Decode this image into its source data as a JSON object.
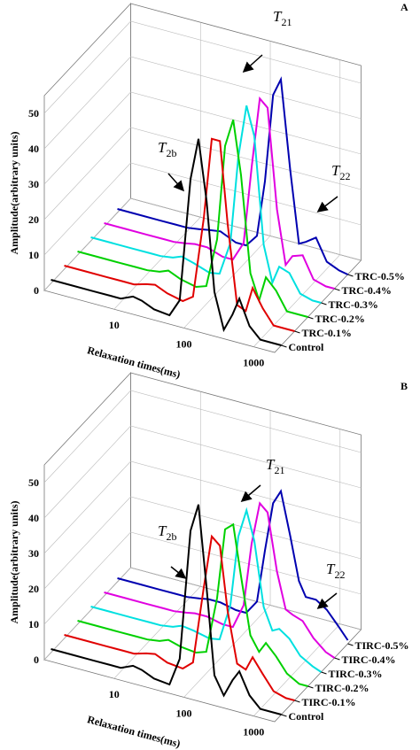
{
  "chart_data": [
    {
      "type": "waterfall",
      "panel_label": "A",
      "x_label": "Relaxation times(ms)",
      "y_label": "Amplitude(arbitrary units)",
      "log_x": true,
      "grid": true,
      "x": [
        1,
        2,
        4,
        7,
        10,
        15,
        20,
        30,
        50,
        70,
        100,
        130,
        170,
        220,
        300,
        400,
        500,
        700,
        1000,
        1500,
        2000
      ],
      "xlim": [
        1,
        2000
      ],
      "xticks": [
        10,
        100,
        1000
      ],
      "ylim": [
        0,
        55
      ],
      "yticks": [
        0,
        10,
        20,
        30,
        40,
        50
      ],
      "series": [
        {
          "name": "Control",
          "color": "#000000",
          "values": [
            1,
            1,
            1,
            1,
            1,
            2.5,
            2,
            0.5,
            0,
            5,
            40,
            52,
            35,
            10,
            0,
            5,
            10,
            3,
            0,
            0,
            0
          ]
        },
        {
          "name": "TRC-0.1%",
          "color": "#e00000",
          "values": [
            1,
            1,
            1,
            1,
            1,
            2,
            2.5,
            1,
            0,
            2,
            25,
            48,
            48,
            25,
            3,
            2,
            9,
            4,
            0,
            0,
            0
          ]
        },
        {
          "name": "TRC-0.2%",
          "color": "#00d000",
          "values": [
            1,
            1,
            1,
            1,
            1,
            1.5,
            2.5,
            1,
            0,
            1,
            15,
            42,
            50,
            35,
            8,
            1,
            8,
            5,
            0,
            0,
            0
          ]
        },
        {
          "name": "TRC-0.3%",
          "color": "#00e0e0",
          "values": [
            1,
            1,
            1,
            1,
            1,
            1.5,
            2.5,
            1.5,
            0,
            0.5,
            10,
            35,
            50,
            42,
            12,
            2,
            7,
            6,
            1,
            0,
            0
          ]
        },
        {
          "name": "TRC-0.4%",
          "color": "#e000e0",
          "values": [
            1,
            1,
            1,
            1,
            1,
            1.5,
            2,
            2,
            0.5,
            0.5,
            6,
            28,
            48,
            46,
            18,
            3,
            6,
            7,
            1,
            0,
            0
          ]
        },
        {
          "name": "TRC-0.5%",
          "color": "#0000b0",
          "values": [
            1,
            1,
            1,
            1,
            1,
            1.5,
            2,
            2.5,
            0.5,
            0.5,
            4,
            20,
            45,
            50,
            25,
            5,
            6,
            8,
            2,
            0.5,
            0
          ]
        }
      ],
      "annotations": [
        {
          "text": "T",
          "sub": "2b"
        },
        {
          "text": "T",
          "sub": "21"
        },
        {
          "text": "T",
          "sub": "22"
        }
      ]
    },
    {
      "type": "waterfall",
      "panel_label": "B",
      "x_label": "Relaxation times(ms)",
      "y_label": "Amplitude(arbitrary units)",
      "log_x": true,
      "grid": true,
      "x": [
        1,
        2,
        4,
        7,
        10,
        15,
        20,
        30,
        50,
        70,
        100,
        130,
        170,
        220,
        300,
        400,
        500,
        700,
        1000,
        1500,
        2000
      ],
      "xlim": [
        1,
        2000
      ],
      "xticks": [
        10,
        100,
        1000
      ],
      "ylim": [
        0,
        55
      ],
      "yticks": [
        0,
        10,
        20,
        30,
        40,
        50
      ],
      "series": [
        {
          "name": "Control",
          "color": "#000000",
          "values": [
            1,
            1,
            1,
            1,
            1,
            2.5,
            2,
            0.5,
            0,
            8,
            45,
            53,
            30,
            6,
            1,
            6,
            9,
            3,
            0,
            0,
            0
          ]
        },
        {
          "name": "TIRC-0.1%",
          "color": "#e00000",
          "values": [
            1,
            1,
            1,
            1,
            1,
            2,
            2.5,
            1,
            0.5,
            3,
            25,
            40,
            38,
            20,
            6,
            5,
            9,
            5,
            1,
            0,
            0
          ]
        },
        {
          "name": "TIRC-0.2%",
          "color": "#00d000",
          "values": [
            1,
            1,
            1,
            1,
            1,
            1.5,
            2.5,
            1.5,
            1,
            2,
            18,
            38,
            40,
            26,
            10,
            6,
            9,
            6,
            2,
            0,
            0
          ]
        },
        {
          "name": "TIRC-0.3%",
          "color": "#00e0e0",
          "values": [
            1,
            1,
            1,
            1,
            1,
            1.5,
            2.5,
            2,
            1,
            1.5,
            12,
            32,
            40,
            32,
            14,
            8,
            9,
            7,
            3,
            1,
            0
          ]
        },
        {
          "name": "TIRC-0.4%",
          "color": "#e000e0",
          "values": [
            1,
            1,
            1,
            1,
            1,
            1.5,
            2,
            2,
            1,
            1,
            8,
            26,
            38,
            36,
            20,
            10,
            9,
            8,
            4,
            1,
            0
          ]
        },
        {
          "name": "TIRC-0.5%",
          "color": "#0000b0",
          "values": [
            1,
            1,
            1,
            1,
            1,
            1.5,
            2,
            2,
            1,
            1,
            5,
            20,
            34,
            38,
            26,
            14,
            10,
            10,
            8,
            4,
            1
          ]
        }
      ],
      "annotations": [
        {
          "text": "T",
          "sub": "2b"
        },
        {
          "text": "T",
          "sub": "21"
        },
        {
          "text": "T",
          "sub": "22"
        }
      ]
    }
  ]
}
